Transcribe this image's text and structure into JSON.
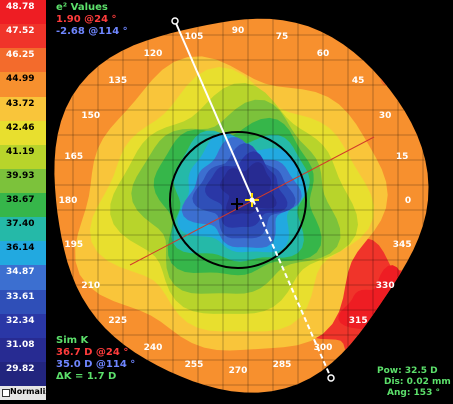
{
  "scale": [
    {
      "label": "48.78",
      "color": "#ee1d23"
    },
    {
      "label": "47.52",
      "color": "#f0342a"
    },
    {
      "label": "46.25",
      "color": "#f36b2c"
    },
    {
      "label": "44.99",
      "color": "#f7902e"
    },
    {
      "label": "43.72",
      "color": "#f9c53a"
    },
    {
      "label": "42.46",
      "color": "#e8df2e"
    },
    {
      "label": "41.19",
      "color": "#b8d42b"
    },
    {
      "label": "39.93",
      "color": "#7cc23b"
    },
    {
      "label": "38.67",
      "color": "#36b64a"
    },
    {
      "label": "37.40",
      "color": "#25b9a8"
    },
    {
      "label": "36.14",
      "color": "#22a9e0"
    },
    {
      "label": "34.87",
      "color": "#3c6fd0"
    },
    {
      "label": "33.61",
      "color": "#2f4fb8"
    },
    {
      "label": "32.34",
      "color": "#2a37a6"
    },
    {
      "label": "31.08",
      "color": "#272b92"
    },
    {
      "label": "29.82",
      "color": "#22257e"
    }
  ],
  "header": {
    "title": "e² Values",
    "line1": "1.90 @24 °",
    "line2": "-2.68 @114 °",
    "color1": "#ff3c3c",
    "color2": "#6f86ff"
  },
  "simk": {
    "title": "Sim K",
    "k1": "36.7 D @24 °",
    "k2": "35.0 D @114 °",
    "dk": "ΔK = 1.7 D",
    "title_color": "#5ce06b",
    "k1_color": "#ff3c3c",
    "k2_color": "#6f86ff"
  },
  "readout": {
    "pow": "Pow: 32.5 D",
    "dis": "Dis: 0.02 mm",
    "ang": "Ang: 153 °",
    "color": "#5ce06b"
  },
  "footer": {
    "label": "Normalized"
  },
  "angles": [
    "90",
    "75",
    "60",
    "45",
    "30",
    "15",
    "0",
    "345",
    "330",
    "315",
    "300",
    "285",
    "270",
    "255",
    "240",
    "225",
    "210",
    "195",
    "180",
    "165",
    "150",
    "135",
    "120",
    "105"
  ]
}
